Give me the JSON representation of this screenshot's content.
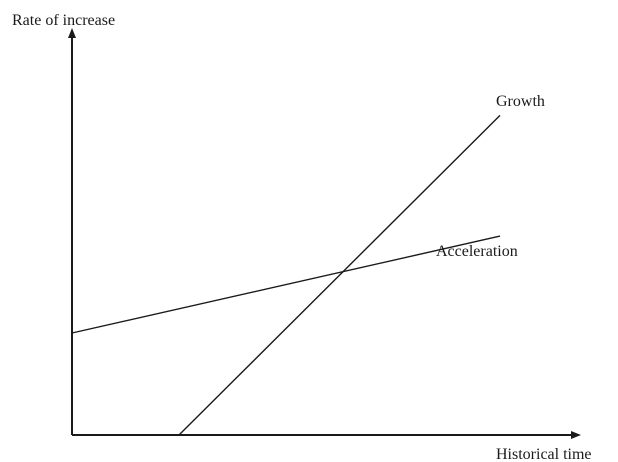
{
  "chart_data": {
    "type": "line",
    "ylabel": "Rate of increase",
    "xlabel": "Historical time",
    "xlim": [
      0,
      10
    ],
    "ylim": [
      0,
      10
    ],
    "grid": false,
    "series": [
      {
        "name": "Growth",
        "x": [
          2.5,
          10
        ],
        "y": [
          0,
          9.4
        ],
        "color": "#1a1a1a"
      },
      {
        "name": "Acceleration",
        "x": [
          0,
          10
        ],
        "y": [
          3.0,
          5.85
        ],
        "color": "#1a1a1a"
      }
    ]
  }
}
